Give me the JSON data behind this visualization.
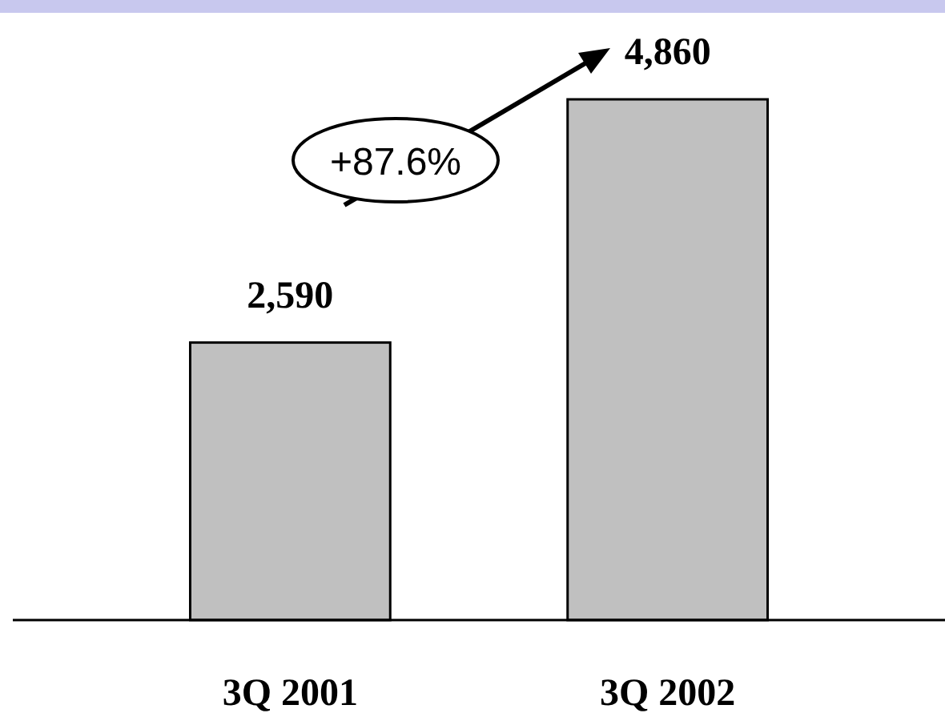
{
  "chart_data": {
    "type": "bar",
    "categories": [
      "3Q 2001",
      "3Q 2002"
    ],
    "values": [
      2590,
      4860
    ],
    "color": "#c0c0c0",
    "value_labels": [
      "2,590",
      "4,860"
    ],
    "annotations": [
      "+87.6%"
    ]
  }
}
